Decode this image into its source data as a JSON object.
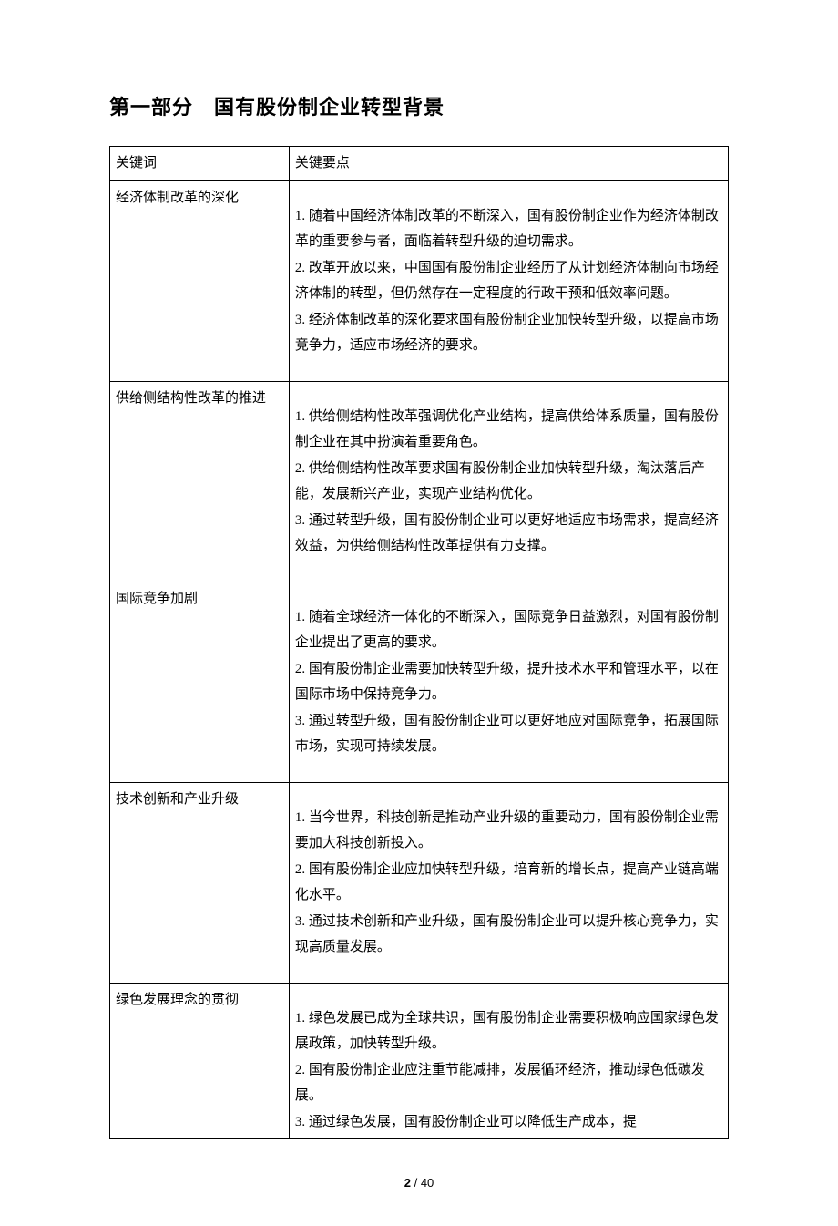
{
  "heading": "第一部分　国有股份制企业转型背景",
  "table": {
    "columns": [
      "关键词",
      "关键要点"
    ],
    "rows": [
      {
        "keyword": "经济体制改革的深化",
        "points": [
          "1. 随着中国经济体制改革的不断深入，国有股份制企业作为经济体制改革的重要参与者，面临着转型升级的迫切需求。",
          "2. 改革开放以来，中国国有股份制企业经历了从计划经济体制向市场经济体制的转型，但仍然存在一定程度的行政干预和低效率问题。",
          "3. 经济体制改革的深化要求国有股份制企业加快转型升级，以提高市场竞争力，适应市场经济的要求。"
        ]
      },
      {
        "keyword": "供给侧结构性改革的推进",
        "points": [
          "1. 供给侧结构性改革强调优化产业结构，提高供给体系质量，国有股份制企业在其中扮演着重要角色。",
          "2. 供给侧结构性改革要求国有股份制企业加快转型升级，淘汰落后产能，发展新兴产业，实现产业结构优化。",
          "3. 通过转型升级，国有股份制企业可以更好地适应市场需求，提高经济效益，为供给侧结构性改革提供有力支撑。"
        ]
      },
      {
        "keyword": "国际竞争加剧",
        "points": [
          "1. 随着全球经济一体化的不断深入，国际竞争日益激烈，对国有股份制企业提出了更高的要求。",
          "2. 国有股份制企业需要加快转型升级，提升技术水平和管理水平，以在国际市场中保持竞争力。",
          "3. 通过转型升级，国有股份制企业可以更好地应对国际竞争，拓展国际市场，实现可持续发展。"
        ]
      },
      {
        "keyword": "技术创新和产业升级",
        "points": [
          "1. 当今世界，科技创新是推动产业升级的重要动力，国有股份制企业需要加大科技创新投入。",
          "2. 国有股份制企业应加快转型升级，培育新的增长点，提高产业链高端化水平。",
          "3. 通过技术创新和产业升级，国有股份制企业可以提升核心竞争力，实现高质量发展。"
        ]
      },
      {
        "keyword": "绿色发展理念的贯彻",
        "points": [
          "1. 绿色发展已成为全球共识，国有股份制企业需要积极响应国家绿色发展政策，加快转型升级。",
          "2. 国有股份制企业应注重节能减排，发展循环经济，推动绿色低碳发展。",
          "3. 通过绿色发展，国有股份制企业可以降低生产成本，提"
        ]
      }
    ]
  },
  "footer": {
    "current": "2",
    "separator": "/",
    "total": "40"
  }
}
